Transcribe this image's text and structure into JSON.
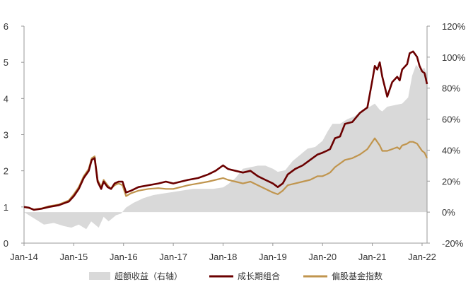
{
  "chart_data": {
    "type": "line",
    "title": "",
    "x_ticks": [
      "Jan-14",
      "Jan-15",
      "Jan-16",
      "Jan-17",
      "Jan-18",
      "Jan-19",
      "Jan-20",
      "Jan-21",
      "Jan-22"
    ],
    "y_left": {
      "ticks": [
        "0",
        "1",
        "2",
        "3",
        "4",
        "5",
        "6"
      ],
      "range": [
        0,
        6
      ]
    },
    "y_right": {
      "ticks": [
        "-20%",
        "0%",
        "20%",
        "40%",
        "60%",
        "80%",
        "100%",
        "120%"
      ],
      "range": [
        -20,
        120
      ]
    },
    "x_range": [
      2014.0,
      2022.1
    ],
    "colors": {
      "excess": "#d9d9d9",
      "growth": "#6b0000",
      "index": "#c0954e",
      "axis": "#999999"
    },
    "series": [
      {
        "name": "超额收益（右轴）",
        "axis": "right",
        "kind": "area",
        "x": [
          2014.0,
          2014.1,
          2014.25,
          2014.4,
          2014.6,
          2014.8,
          2014.95,
          2015.1,
          2015.25,
          2015.35,
          2015.5,
          2015.6,
          2015.7,
          2015.85,
          2015.95,
          2016.05,
          2016.2,
          2016.4,
          2016.6,
          2016.8,
          2017.0,
          2017.2,
          2017.4,
          2017.6,
          2017.8,
          2018.0,
          2018.1,
          2018.25,
          2018.4,
          2018.55,
          2018.7,
          2018.85,
          2019.0,
          2019.1,
          2019.25,
          2019.4,
          2019.55,
          2019.7,
          2019.85,
          2020.0,
          2020.1,
          2020.2,
          2020.35,
          2020.5,
          2020.65,
          2020.8,
          2020.95,
          2021.05,
          2021.15,
          2021.2,
          2021.3,
          2021.45,
          2021.6,
          2021.72,
          2021.8,
          2021.88,
          2021.95,
          2022.05,
          2022.1
        ],
        "values": [
          0,
          -2,
          -5,
          -8,
          -7,
          -9,
          -10,
          -8,
          -11,
          -6,
          -10,
          -3,
          -6,
          -2,
          -1,
          3,
          6,
          9,
          11,
          12,
          13,
          14,
          15,
          15,
          15,
          16,
          18,
          22,
          28,
          29,
          30,
          30,
          28,
          26,
          27,
          33,
          37,
          41,
          42,
          46,
          52,
          57,
          57,
          60,
          62,
          66,
          68,
          70,
          66,
          65,
          68,
          69,
          70,
          74,
          88,
          95,
          92,
          93,
          88
        ]
      },
      {
        "name": "成长期组合",
        "axis": "left",
        "kind": "line",
        "x": [
          2014.0,
          2014.1,
          2014.2,
          2014.35,
          2014.5,
          2014.7,
          2014.9,
          2015.0,
          2015.1,
          2015.2,
          2015.3,
          2015.36,
          2015.42,
          2015.48,
          2015.55,
          2015.6,
          2015.68,
          2015.75,
          2015.82,
          2015.9,
          2015.98,
          2016.05,
          2016.15,
          2016.3,
          2016.5,
          2016.7,
          2016.85,
          2017.0,
          2017.15,
          2017.3,
          2017.5,
          2017.7,
          2017.85,
          2018.0,
          2018.1,
          2018.25,
          2018.4,
          2018.55,
          2018.7,
          2018.85,
          2019.0,
          2019.1,
          2019.2,
          2019.3,
          2019.45,
          2019.6,
          2019.75,
          2019.9,
          2020.0,
          2020.08,
          2020.15,
          2020.25,
          2020.35,
          2020.45,
          2020.6,
          2020.75,
          2020.9,
          2021.0,
          2021.05,
          2021.1,
          2021.15,
          2021.2,
          2021.3,
          2021.4,
          2021.5,
          2021.55,
          2021.6,
          2021.7,
          2021.75,
          2021.82,
          2021.9,
          2021.95,
          2022.0,
          2022.05,
          2022.1
        ],
        "values": [
          1.0,
          0.98,
          0.92,
          0.95,
          1.0,
          1.05,
          1.15,
          1.3,
          1.5,
          1.8,
          2.0,
          2.3,
          2.35,
          1.7,
          1.5,
          1.7,
          1.55,
          1.5,
          1.65,
          1.7,
          1.7,
          1.4,
          1.45,
          1.55,
          1.6,
          1.65,
          1.7,
          1.65,
          1.7,
          1.75,
          1.8,
          1.9,
          2.0,
          2.15,
          2.05,
          2.0,
          1.95,
          2.0,
          1.85,
          1.75,
          1.65,
          1.55,
          1.65,
          1.9,
          2.05,
          2.15,
          2.3,
          2.45,
          2.5,
          2.55,
          2.6,
          2.9,
          2.95,
          3.3,
          3.35,
          3.6,
          3.75,
          4.5,
          4.9,
          4.8,
          5.0,
          4.6,
          4.05,
          4.45,
          4.6,
          4.5,
          4.8,
          4.95,
          5.25,
          5.3,
          5.15,
          4.9,
          4.75,
          4.7,
          4.4
        ]
      },
      {
        "name": "偏股基金指数",
        "axis": "left",
        "kind": "line",
        "x": [
          2014.0,
          2014.1,
          2014.2,
          2014.35,
          2014.5,
          2014.7,
          2014.9,
          2015.0,
          2015.1,
          2015.2,
          2015.3,
          2015.36,
          2015.42,
          2015.48,
          2015.55,
          2015.6,
          2015.68,
          2015.75,
          2015.82,
          2015.9,
          2015.98,
          2016.05,
          2016.15,
          2016.3,
          2016.5,
          2016.7,
          2016.85,
          2017.0,
          2017.15,
          2017.3,
          2017.5,
          2017.7,
          2017.85,
          2018.0,
          2018.1,
          2018.25,
          2018.4,
          2018.55,
          2018.7,
          2018.85,
          2019.0,
          2019.1,
          2019.2,
          2019.3,
          2019.45,
          2019.6,
          2019.75,
          2019.9,
          2020.0,
          2020.08,
          2020.15,
          2020.25,
          2020.35,
          2020.45,
          2020.6,
          2020.75,
          2020.9,
          2021.0,
          2021.05,
          2021.1,
          2021.15,
          2021.2,
          2021.3,
          2021.4,
          2021.5,
          2021.55,
          2021.6,
          2021.7,
          2021.75,
          2021.82,
          2021.9,
          2021.95,
          2022.0,
          2022.05,
          2022.1
        ],
        "values": [
          1.0,
          0.97,
          0.93,
          0.96,
          1.02,
          1.07,
          1.18,
          1.35,
          1.55,
          1.85,
          2.05,
          2.35,
          2.4,
          1.75,
          1.55,
          1.75,
          1.6,
          1.5,
          1.6,
          1.65,
          1.6,
          1.3,
          1.38,
          1.45,
          1.5,
          1.52,
          1.5,
          1.5,
          1.55,
          1.6,
          1.65,
          1.7,
          1.75,
          1.8,
          1.75,
          1.7,
          1.65,
          1.7,
          1.6,
          1.5,
          1.4,
          1.35,
          1.45,
          1.6,
          1.65,
          1.7,
          1.75,
          1.85,
          1.85,
          1.9,
          1.95,
          2.1,
          2.2,
          2.3,
          2.35,
          2.45,
          2.6,
          2.8,
          2.9,
          2.8,
          2.7,
          2.55,
          2.55,
          2.6,
          2.65,
          2.6,
          2.7,
          2.75,
          2.8,
          2.8,
          2.75,
          2.65,
          2.55,
          2.5,
          2.35
        ]
      }
    ],
    "legend": [
      "超额收益（右轴）",
      "成长期组合",
      "偏股基金指数"
    ],
    "legend_position": "bottom"
  }
}
